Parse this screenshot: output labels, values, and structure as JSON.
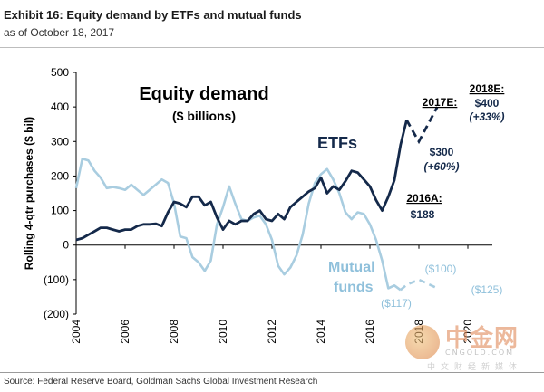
{
  "header": {
    "title": "Exhibit 16: Equity demand by ETFs and mutual funds",
    "subtitle": "as of October 18, 2017"
  },
  "footer": {
    "source": "Source: Federal Reserve Board, Goldman Sachs Global Investment Research"
  },
  "watermark": {
    "main": "中金网",
    "url": "CNGOLD.COM",
    "tagline": "中文财经新媒体"
  },
  "colors": {
    "etf": "#14294a",
    "mutual": "#a9cde0",
    "axis": "#000000",
    "text": "#000000",
    "mutual_text": "#8fc0db"
  },
  "chart_data": {
    "type": "line",
    "title": "Equity demand",
    "subtitle": "($ billions)",
    "xlabel": "",
    "ylabel": "Rolling 4-qtr purchases ($ bil)",
    "xlim": [
      2004,
      2021
    ],
    "ylim": [
      -200,
      500
    ],
    "x_ticks": [
      2004,
      2006,
      2008,
      2010,
      2012,
      2014,
      2016,
      2018,
      2020
    ],
    "y_ticks": [
      500,
      400,
      300,
      200,
      100,
      0,
      -100,
      -200
    ],
    "y_tick_labels": [
      "500",
      "400",
      "300",
      "200",
      "100",
      "0",
      "(100)",
      "(200)"
    ],
    "grid": false,
    "series": [
      {
        "name": "ETFs",
        "label": "ETFs",
        "x": [
          2004.0,
          2004.25,
          2004.5,
          2004.75,
          2005.0,
          2005.25,
          2005.5,
          2005.75,
          2006.0,
          2006.25,
          2006.5,
          2006.75,
          2007.0,
          2007.25,
          2007.5,
          2007.75,
          2008.0,
          2008.25,
          2008.5,
          2008.75,
          2009.0,
          2009.25,
          2009.5,
          2009.75,
          2010.0,
          2010.25,
          2010.5,
          2010.75,
          2011.0,
          2011.25,
          2011.5,
          2011.75,
          2012.0,
          2012.25,
          2012.5,
          2012.75,
          2013.0,
          2013.25,
          2013.5,
          2013.75,
          2014.0,
          2014.25,
          2014.5,
          2014.75,
          2015.0,
          2015.25,
          2015.5,
          2015.75,
          2016.0,
          2016.25,
          2016.5,
          2016.75,
          2017.0,
          2017.25,
          2017.5
        ],
        "values": [
          15,
          20,
          30,
          40,
          50,
          50,
          45,
          40,
          45,
          45,
          55,
          60,
          60,
          62,
          55,
          95,
          125,
          120,
          110,
          140,
          140,
          115,
          125,
          80,
          45,
          70,
          60,
          70,
          70,
          90,
          100,
          75,
          70,
          90,
          75,
          110,
          125,
          140,
          155,
          165,
          195,
          150,
          170,
          160,
          185,
          215,
          210,
          190,
          170,
          130,
          100,
          140,
          188,
          290,
          362
        ],
        "projection": {
          "x": [
            2017.5,
            2017.75,
            2018.0,
            2018.75
          ],
          "values": [
            362,
            330,
            300,
            400
          ]
        }
      },
      {
        "name": "Mutual funds",
        "label": "Mutual funds",
        "x": [
          2004.0,
          2004.25,
          2004.5,
          2004.75,
          2005.0,
          2005.25,
          2005.5,
          2005.75,
          2006.0,
          2006.25,
          2006.5,
          2006.75,
          2007.0,
          2007.25,
          2007.5,
          2007.75,
          2008.0,
          2008.25,
          2008.5,
          2008.75,
          2009.0,
          2009.25,
          2009.5,
          2009.75,
          2010.0,
          2010.25,
          2010.5,
          2010.75,
          2011.0,
          2011.25,
          2011.5,
          2011.75,
          2012.0,
          2012.25,
          2012.5,
          2012.75,
          2013.0,
          2013.25,
          2013.5,
          2013.75,
          2014.0,
          2014.25,
          2014.5,
          2014.75,
          2015.0,
          2015.25,
          2015.5,
          2015.75,
          2016.0,
          2016.25,
          2016.5,
          2016.75,
          2017.0,
          2017.25
        ],
        "values": [
          165,
          250,
          245,
          215,
          195,
          165,
          168,
          165,
          160,
          175,
          160,
          145,
          160,
          175,
          190,
          180,
          120,
          25,
          20,
          -35,
          -50,
          -75,
          -45,
          60,
          110,
          170,
          120,
          75,
          70,
          80,
          85,
          60,
          15,
          -60,
          -85,
          -65,
          -30,
          30,
          120,
          180,
          205,
          220,
          190,
          150,
          95,
          75,
          95,
          90,
          60,
          15,
          -45,
          -125,
          -117,
          -130
        ],
        "projection": {
          "x": [
            2017.25,
            2017.5,
            2018.0,
            2018.75
          ],
          "values": [
            -130,
            -115,
            -100,
            -125
          ]
        }
      }
    ],
    "annotations": [
      {
        "text": "2018E:",
        "x": 2018.75,
        "y": 400,
        "bold": true,
        "underline": true
      },
      {
        "text": "$400",
        "x": 2018.75,
        "y": 400
      },
      {
        "text": "(+33%)",
        "x": 2018.75,
        "y": 400,
        "italic": true
      },
      {
        "text": "2017E:",
        "x": 2017.75,
        "y": 362,
        "bold": true,
        "underline": true
      },
      {
        "text": "$300",
        "x": 2018.0,
        "y": 300
      },
      {
        "text": "(+60%)",
        "x": 2018.0,
        "y": 300,
        "italic": true
      },
      {
        "text": "2016A:",
        "x": 2017.0,
        "y": 188,
        "bold": true,
        "underline": true
      },
      {
        "text": "$188",
        "x": 2017.0,
        "y": 188
      },
      {
        "text": "($100)",
        "x": 2018.0,
        "y": -100
      },
      {
        "text": "($125)",
        "x": 2018.75,
        "y": -125
      },
      {
        "text": "($117)",
        "x": 2017.0,
        "y": -117
      }
    ]
  }
}
